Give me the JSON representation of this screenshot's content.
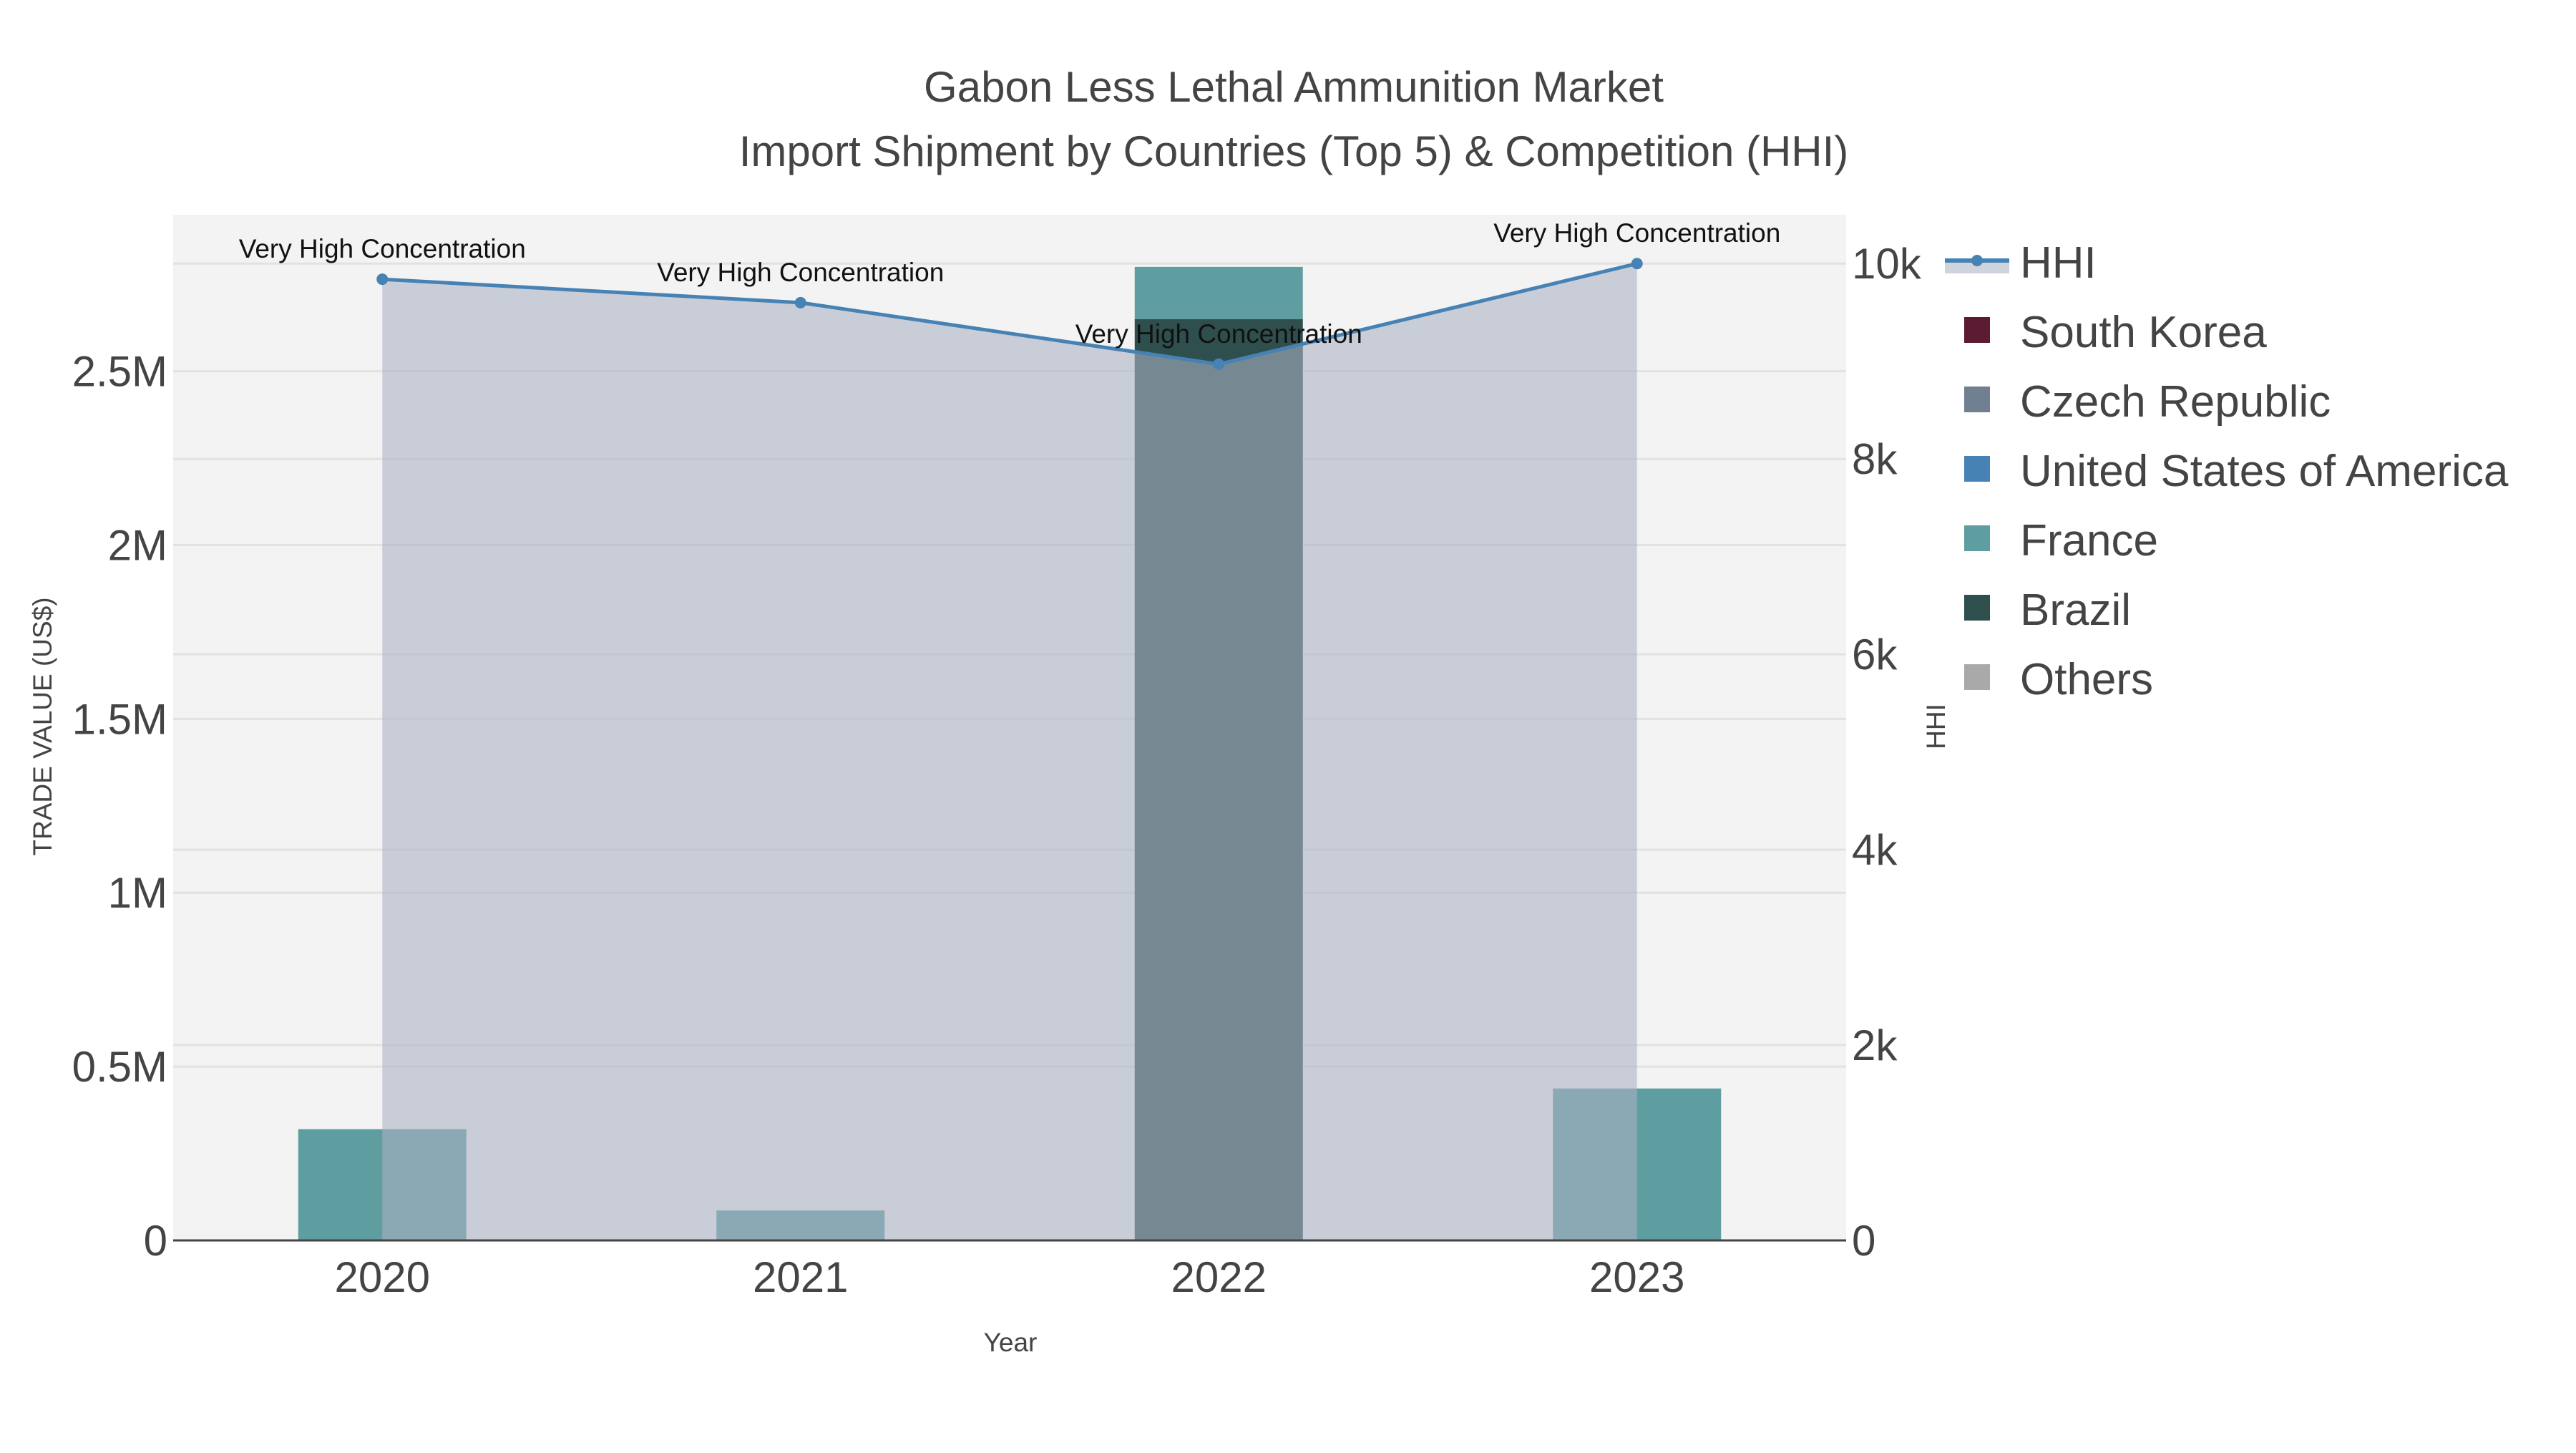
{
  "chart_data": {
    "type": "bar",
    "title_line1": "Gabon Less Lethal Ammunition Market",
    "title_line2": "Import Shipment by Countries (Top 5) & Competition (HHI)",
    "xlabel": "Year",
    "ylabel": "TRADE VALUE (US$)",
    "y2label": "HHI",
    "categories": [
      "2020",
      "2021",
      "2022",
      "2023"
    ],
    "ylim": [
      0,
      2950000
    ],
    "y2lim": [
      0,
      10500
    ],
    "yticks": [
      0,
      500000,
      1000000,
      1500000,
      2000000,
      2500000
    ],
    "ytick_labels": [
      "0",
      "0.5M",
      "1M",
      "1.5M",
      "2M",
      "2.5M"
    ],
    "y2ticks": [
      0,
      2000,
      4000,
      6000,
      8000,
      10000
    ],
    "y2tick_labels": [
      "0",
      "2k",
      "4k",
      "6k",
      "8k",
      "10k"
    ],
    "grid": true,
    "legend_placement": "right",
    "series": [
      {
        "name": "South Korea",
        "color": "#5c1a33",
        "values": [
          0,
          0,
          0,
          0
        ]
      },
      {
        "name": "Czech Republic",
        "color": "#708090",
        "values": [
          0,
          0,
          0,
          0
        ]
      },
      {
        "name": "United States of America",
        "color": "#4682b4",
        "values": [
          0,
          0,
          0,
          0
        ]
      },
      {
        "name": "France",
        "color": "#5f9ea0",
        "values": [
          320000,
          86000,
          150000,
          437000
        ]
      },
      {
        "name": "Brazil",
        "color": "#2f4f4f",
        "values": [
          0,
          0,
          2650000,
          0
        ]
      },
      {
        "name": "Others",
        "color": "#a9a9a9",
        "values": [
          0,
          0,
          0,
          0
        ]
      }
    ],
    "stack_order": [
      "Brazil",
      "France",
      "United States of America",
      "Czech Republic",
      "South Korea",
      "Others"
    ],
    "hhi": {
      "name": "HHI",
      "color": "#4682b4",
      "values": [
        9840,
        9600,
        8970,
        10000
      ],
      "annotations": [
        "Very High Concentration",
        "Very High Concentration",
        "Very High Concentration",
        "Very High Concentration"
      ]
    }
  }
}
